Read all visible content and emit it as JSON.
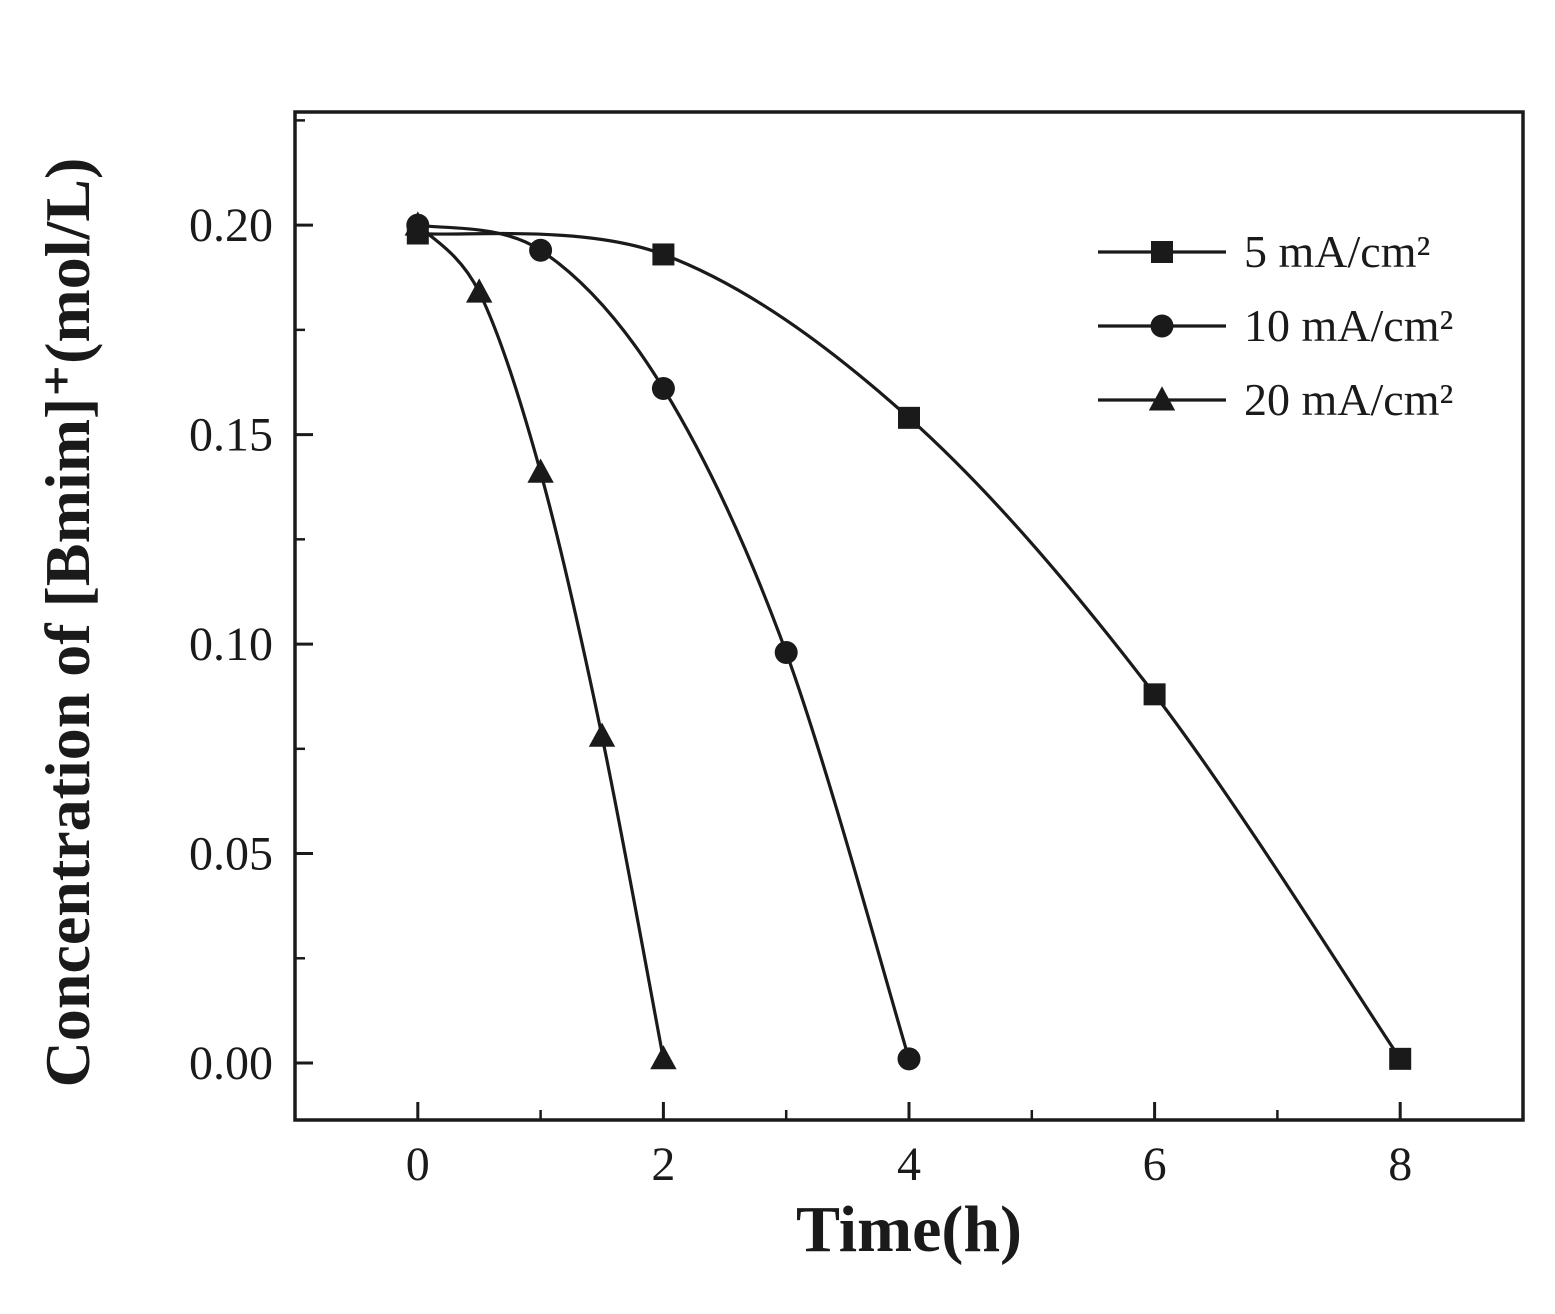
{
  "chart_data": {
    "type": "line",
    "title": "",
    "xlabel": "Time(h)",
    "ylabel": "Concentration of [Bmim]⁺(mol/L)",
    "xlim": [
      -1,
      9
    ],
    "ylim": [
      -0.0136,
      0.227
    ],
    "xticks": [
      0,
      2,
      4,
      6,
      8
    ],
    "xtick_labels": [
      "0",
      "2",
      "4",
      "6",
      "8"
    ],
    "x_minor_ticks": [
      1,
      3,
      5,
      7
    ],
    "yticks": [
      0.0,
      0.05,
      0.1,
      0.15,
      0.2
    ],
    "ytick_labels": [
      "0.00",
      "0.05",
      "0.10",
      "0.15",
      "0.20"
    ],
    "y_minor_ticks": [
      0.025,
      0.075,
      0.125,
      0.175,
      0.225
    ],
    "grid": false,
    "legend_position": "top-right-inside",
    "line_color": "#1a1a1a",
    "background_color": "#ffffff",
    "series": [
      {
        "name": "5 mA/cm²",
        "marker": "square",
        "x": [
          0,
          2,
          4,
          6,
          8
        ],
        "y": [
          0.198,
          0.193,
          0.154,
          0.088,
          0.001
        ]
      },
      {
        "name": "10 mA/cm²",
        "marker": "circle",
        "x": [
          0,
          1,
          2,
          3,
          4
        ],
        "y": [
          0.2,
          0.194,
          0.161,
          0.098,
          0.001
        ]
      },
      {
        "name": "20 mA/cm²",
        "marker": "triangle",
        "x": [
          0,
          0.5,
          1,
          1.5,
          2
        ],
        "y": [
          0.2,
          0.184,
          0.141,
          0.078,
          0.001
        ]
      }
    ]
  }
}
